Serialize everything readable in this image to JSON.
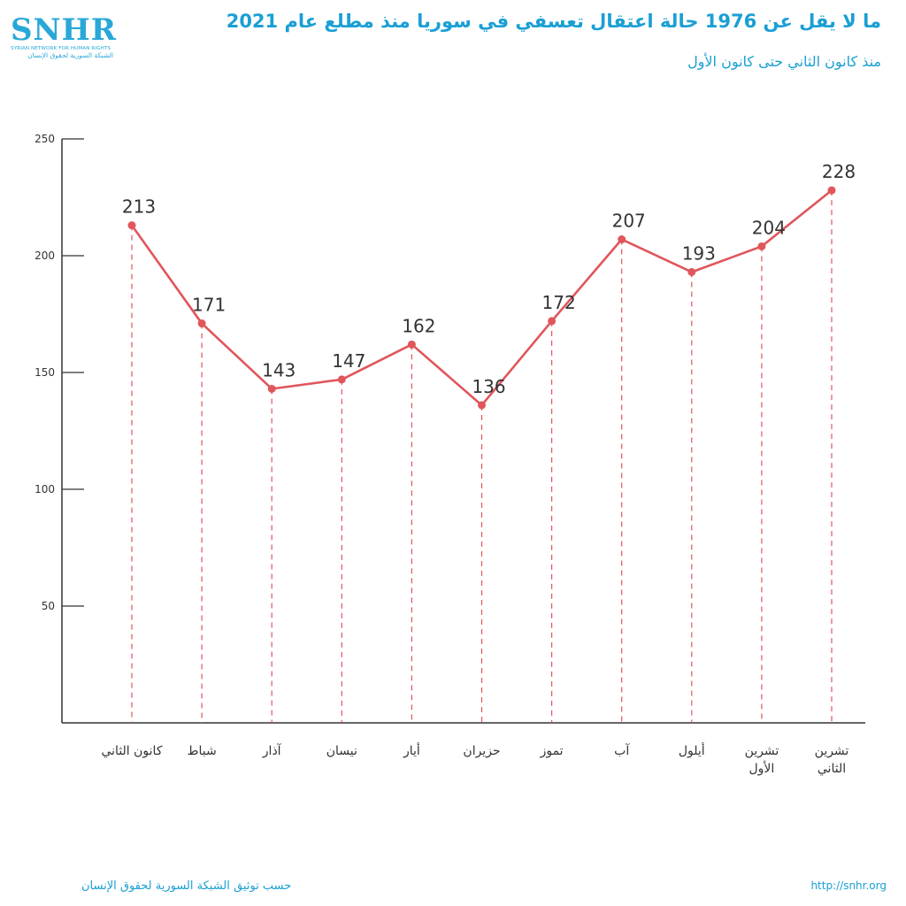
{
  "header": {
    "logo": "SNHR",
    "logo_sub_en": "SYRIAN NETWORK FOR HUMAN RIGHTS",
    "logo_sub_ar": "الشبكة السورية لحقوق الإنسان",
    "title": "ما لا يقل عن 1976 حالة اعتقال تعسفي في سوريا منذ مطلع عام 2021",
    "subtitle": "منذ كانون الثاني حتى كانون الأول"
  },
  "footer": {
    "source": "حسب توثيق الشبكة السورية لحقوق الإنسان",
    "url": "http://snhr.org"
  },
  "colors": {
    "accent": "#1a9fd4",
    "line": "#e0565b",
    "axis": "#333333"
  },
  "chart_data": {
    "type": "line",
    "title": "ما لا يقل عن 1976 حالة اعتقال تعسفي في سوريا منذ مطلع عام 2021",
    "categories": [
      [
        "كانون الثاني"
      ],
      [
        "شباط"
      ],
      [
        "آذار"
      ],
      [
        "نيسان"
      ],
      [
        "أيار"
      ],
      [
        "حزيران"
      ],
      [
        "تموز"
      ],
      [
        "آب"
      ],
      [
        "أيلول"
      ],
      [
        "تشرين",
        "الأول"
      ],
      [
        "تشرين",
        "الثاني"
      ]
    ],
    "values": [
      213,
      171,
      143,
      147,
      162,
      136,
      172,
      207,
      193,
      204,
      228
    ],
    "value_labels": [
      "213",
      "171",
      "143",
      "147",
      "162",
      "136",
      "172",
      "207",
      "193",
      "204",
      "228"
    ],
    "ylim": [
      0,
      250
    ],
    "yticks": [
      50,
      100,
      150,
      200,
      250
    ],
    "ytick_labels": [
      "50",
      "100",
      "150",
      "200",
      "250"
    ],
    "xlabel": "",
    "ylabel": "",
    "grid": false
  }
}
